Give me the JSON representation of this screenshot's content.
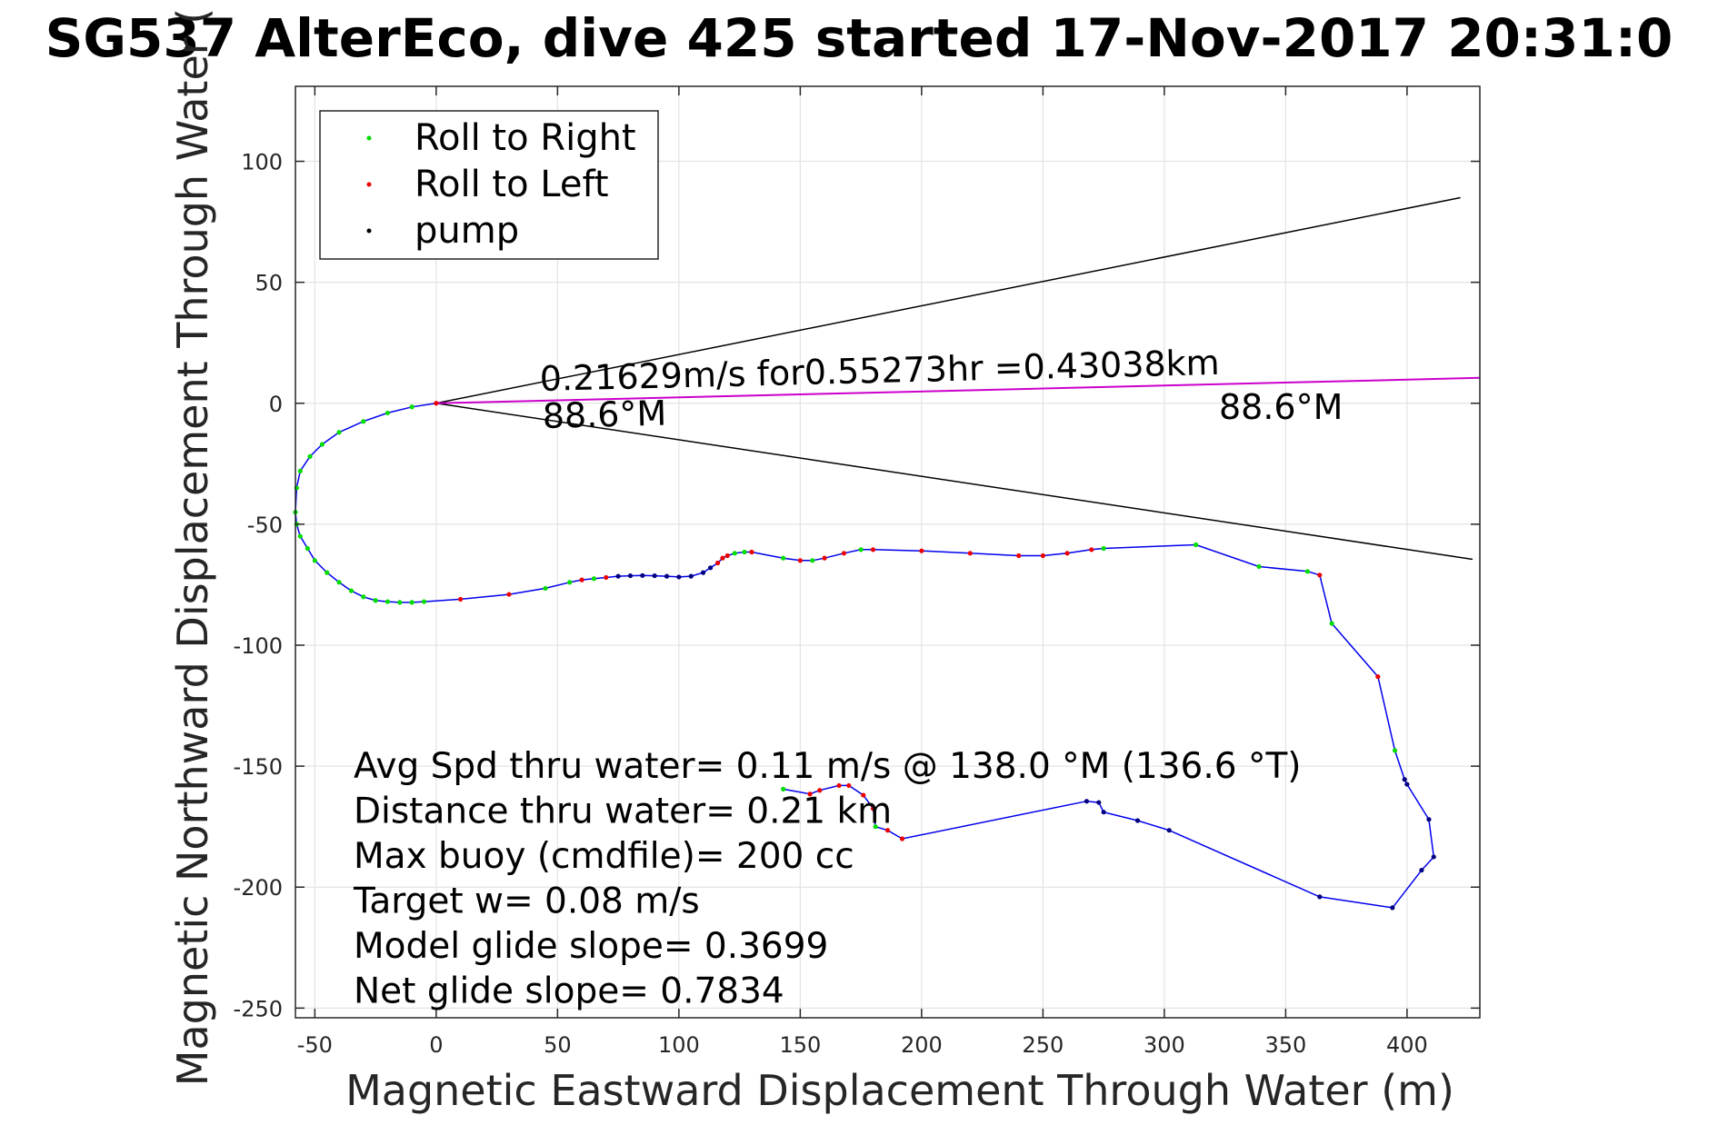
{
  "chart_data": {
    "type": "line",
    "title": "SG537 AlterEco, dive 425 started 17-Nov-2017 20:31:0",
    "xlabel": "Magnetic Eastward Displacement Through Water (m)",
    "ylabel": "Magnetic Northward Displacement Through Water (",
    "xlim": [
      -58,
      430
    ],
    "ylim": [
      -254,
      131
    ],
    "xticks": [
      -50,
      0,
      50,
      100,
      150,
      200,
      250,
      300,
      350,
      400
    ],
    "yticks": [
      -250,
      -200,
      -150,
      -100,
      -50,
      0,
      50,
      100
    ],
    "grid": true,
    "legend_position": "top-left",
    "legend": [
      {
        "label": "Roll to Right",
        "color": "#00dd00"
      },
      {
        "label": "Roll to Left",
        "color": "#ee0000"
      },
      {
        "label": "pump",
        "color": "#000000"
      }
    ],
    "colors": {
      "track": "#0000ee",
      "current_vector": "#cc00cc",
      "cone": "#000000",
      "roll_right": "#00dd00",
      "roll_left": "#ee0000",
      "pump": "#000080"
    },
    "track": {
      "x": [
        0,
        -10,
        -20,
        -30,
        -40,
        -47,
        -52,
        -56,
        -57.5,
        -58,
        -57.5,
        -56,
        -53,
        -50,
        -45,
        -40,
        -35,
        -30,
        -25,
        -20,
        -15,
        -10,
        -5,
        10,
        30,
        45,
        55,
        60,
        65,
        70,
        75,
        80,
        85,
        90,
        95,
        100,
        105,
        110,
        113,
        116,
        118,
        120,
        123,
        127,
        130,
        143,
        150,
        155,
        160,
        168,
        175,
        180,
        200,
        220,
        240,
        250,
        260,
        270,
        275,
        313,
        339,
        359,
        364,
        369,
        388,
        395,
        399,
        400,
        409,
        411,
        406,
        394,
        364,
        302,
        289,
        275,
        273,
        268,
        192,
        186,
        181,
        180,
        176,
        170,
        166,
        158,
        154,
        143
      ],
      "y": [
        0,
        -1.5,
        -4,
        -7.5,
        -12,
        -17,
        -22,
        -28,
        -35,
        -45,
        -50,
        -55,
        -60,
        -65,
        -70,
        -74,
        -77.5,
        -80,
        -81.5,
        -82,
        -82.3,
        -82.3,
        -82,
        -81,
        -79,
        -76.5,
        -74,
        -73,
        -72.5,
        -72,
        -71.5,
        -71.3,
        -71.2,
        -71.3,
        -71.5,
        -71.8,
        -71.5,
        -70,
        -68,
        -66,
        -64,
        -63,
        -62,
        -61.5,
        -61.5,
        -64,
        -65,
        -65,
        -64,
        -62,
        -60.5,
        -60.5,
        -61,
        -62,
        -63,
        -63,
        -62,
        -60.5,
        -60,
        -58.5,
        -67.5,
        -69.5,
        -71,
        -91,
        -113,
        -143.5,
        -155.5,
        -157.5,
        -172,
        -187.5,
        -193,
        -208.5,
        -204,
        -176.5,
        -172.5,
        -169,
        -165,
        -164.5,
        -180,
        -176.5,
        -175,
        -167.5,
        -162,
        -158,
        -158,
        -160,
        -161.5,
        -159.5
      ]
    },
    "current_vector": {
      "x": [
        0,
        430
      ],
      "y": [
        0,
        10.5
      ]
    },
    "cone_lines": [
      {
        "x": [
          0,
          422
        ],
        "y": [
          0,
          85
        ]
      },
      {
        "x": [
          0,
          427
        ],
        "y": [
          0,
          -64.5
        ]
      }
    ],
    "annotations": {
      "speed_line1": "0.21629m/s for0.55273hr =0.43038km",
      "speed_line2": "88.6°M",
      "end_heading": "88.6°M"
    },
    "info_lines": [
      "Avg Spd thru water=  0.11 m/s @ 138.0 °M (136.6 °T)",
      "Distance thru water=  0.21 km",
      "Max buoy (cmdfile)= 200 cc",
      "Target w= 0.08 m/s",
      "Model glide slope= 0.3699",
      "Net glide slope= 0.7834"
    ]
  }
}
